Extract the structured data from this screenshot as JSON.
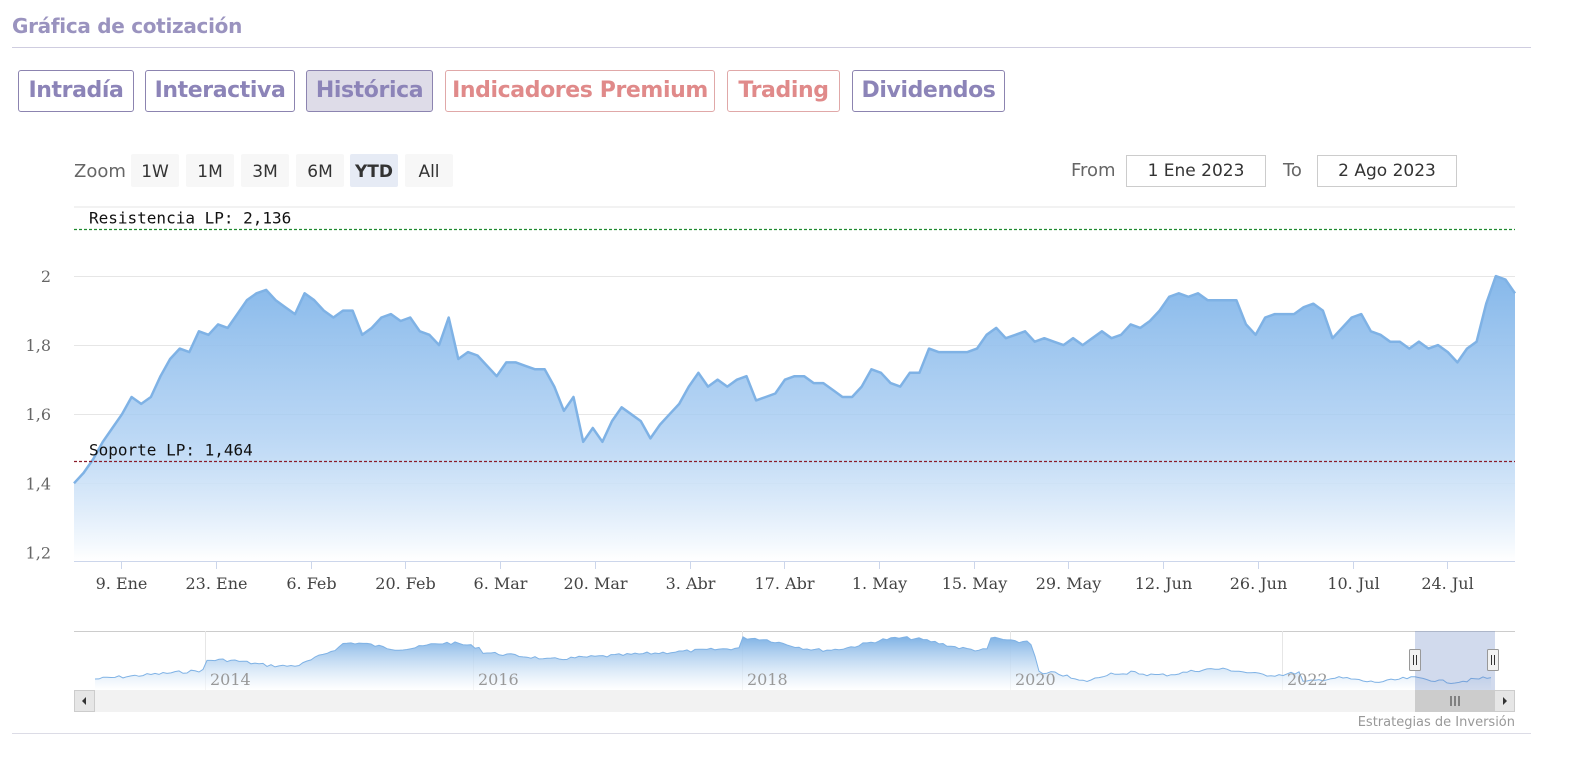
{
  "header": {
    "title": "Gráfica de cotización"
  },
  "tabs": [
    {
      "label": "Intradía",
      "style": "normal"
    },
    {
      "label": "Interactiva",
      "style": "normal"
    },
    {
      "label": "Histórica",
      "style": "active"
    },
    {
      "label": "Indicadores Premium",
      "style": "premium"
    },
    {
      "label": "Trading",
      "style": "premium"
    },
    {
      "label": "Dividendos",
      "style": "normal"
    }
  ],
  "range_selector": {
    "zoom_label": "Zoom",
    "buttons": [
      "1W",
      "1M",
      "3M",
      "6M",
      "YTD",
      "All"
    ],
    "selected": "YTD",
    "from_label": "From",
    "from_value": "1 Ene 2023",
    "to_label": "To",
    "to_value": "2 Ago 2023"
  },
  "chart_data": {
    "type": "area",
    "title": "",
    "xlabel": "",
    "ylabel": "",
    "ylim": [
      1.175,
      2.2
    ],
    "y_ticks": [
      1.2,
      1.4,
      1.6,
      1.8,
      2.0
    ],
    "y_tick_labels": [
      "1,2",
      "1,4",
      "1,6",
      "1,8",
      "2"
    ],
    "x_tick_labels": [
      "9. Ene",
      "23. Ene",
      "6. Feb",
      "20. Feb",
      "6. Mar",
      "20. Mar",
      "3. Abr",
      "17. Abr",
      "1. May",
      "15. May",
      "29. May",
      "12. Jun",
      "26. Jun",
      "10. Jul",
      "24. Jul"
    ],
    "x_tick_days": [
      8,
      22,
      36,
      50,
      64,
      78,
      92,
      106,
      120,
      134,
      148,
      162,
      176,
      190,
      204
    ],
    "x_range_days": [
      1,
      214
    ],
    "x_day_origin": "1 Ene 2023",
    "series": [
      {
        "values": [
          [
            1,
            1.4
          ],
          [
            2,
            1.43
          ],
          [
            3,
            1.47
          ],
          [
            4,
            1.52
          ],
          [
            5,
            1.56
          ],
          [
            6,
            1.6
          ],
          [
            7,
            1.65
          ],
          [
            8,
            1.63
          ],
          [
            9,
            1.65
          ],
          [
            10,
            1.71
          ],
          [
            11,
            1.76
          ],
          [
            12,
            1.79
          ],
          [
            13,
            1.78
          ],
          [
            14,
            1.84
          ],
          [
            15,
            1.83
          ],
          [
            16,
            1.86
          ],
          [
            17,
            1.85
          ],
          [
            18,
            1.89
          ],
          [
            19,
            1.93
          ],
          [
            20,
            1.95
          ],
          [
            21,
            1.96
          ],
          [
            22,
            1.93
          ],
          [
            23,
            1.91
          ],
          [
            24,
            1.89
          ],
          [
            25,
            1.95
          ],
          [
            26,
            1.93
          ],
          [
            27,
            1.9
          ],
          [
            28,
            1.88
          ],
          [
            29,
            1.9
          ],
          [
            30,
            1.9
          ],
          [
            31,
            1.83
          ],
          [
            32,
            1.85
          ],
          [
            33,
            1.88
          ],
          [
            34,
            1.89
          ],
          [
            35,
            1.87
          ],
          [
            36,
            1.88
          ],
          [
            37,
            1.84
          ],
          [
            38,
            1.83
          ],
          [
            39,
            1.8
          ],
          [
            40,
            1.88
          ],
          [
            41,
            1.76
          ],
          [
            42,
            1.78
          ],
          [
            43,
            1.77
          ],
          [
            44,
            1.74
          ],
          [
            45,
            1.71
          ],
          [
            46,
            1.75
          ],
          [
            47,
            1.75
          ],
          [
            48,
            1.74
          ],
          [
            49,
            1.73
          ],
          [
            50,
            1.73
          ],
          [
            51,
            1.68
          ],
          [
            52,
            1.61
          ],
          [
            53,
            1.65
          ],
          [
            54,
            1.52
          ],
          [
            55,
            1.56
          ],
          [
            56,
            1.52
          ],
          [
            57,
            1.58
          ],
          [
            58,
            1.62
          ],
          [
            59,
            1.6
          ],
          [
            60,
            1.58
          ],
          [
            61,
            1.53
          ],
          [
            62,
            1.57
          ],
          [
            63,
            1.6
          ],
          [
            64,
            1.63
          ],
          [
            65,
            1.68
          ],
          [
            66,
            1.72
          ],
          [
            67,
            1.68
          ],
          [
            68,
            1.7
          ],
          [
            69,
            1.68
          ],
          [
            70,
            1.7
          ],
          [
            71,
            1.71
          ],
          [
            72,
            1.64
          ],
          [
            73,
            1.65
          ],
          [
            74,
            1.66
          ],
          [
            75,
            1.7
          ],
          [
            76,
            1.71
          ],
          [
            77,
            1.71
          ],
          [
            78,
            1.69
          ],
          [
            79,
            1.69
          ],
          [
            80,
            1.67
          ],
          [
            81,
            1.65
          ],
          [
            82,
            1.65
          ],
          [
            83,
            1.68
          ],
          [
            84,
            1.73
          ],
          [
            85,
            1.72
          ],
          [
            86,
            1.69
          ],
          [
            87,
            1.68
          ],
          [
            88,
            1.72
          ],
          [
            89,
            1.72
          ],
          [
            90,
            1.79
          ],
          [
            91,
            1.78
          ],
          [
            92,
            1.78
          ],
          [
            93,
            1.78
          ],
          [
            94,
            1.78
          ],
          [
            95,
            1.79
          ],
          [
            96,
            1.83
          ],
          [
            97,
            1.85
          ],
          [
            98,
            1.82
          ],
          [
            99,
            1.83
          ],
          [
            100,
            1.84
          ],
          [
            101,
            1.81
          ],
          [
            102,
            1.82
          ],
          [
            103,
            1.81
          ],
          [
            104,
            1.8
          ],
          [
            105,
            1.82
          ],
          [
            106,
            1.8
          ],
          [
            107,
            1.82
          ],
          [
            108,
            1.84
          ],
          [
            109,
            1.82
          ],
          [
            110,
            1.83
          ],
          [
            111,
            1.86
          ],
          [
            112,
            1.85
          ],
          [
            113,
            1.87
          ],
          [
            114,
            1.9
          ],
          [
            115,
            1.94
          ],
          [
            116,
            1.95
          ],
          [
            117,
            1.94
          ],
          [
            118,
            1.95
          ],
          [
            119,
            1.93
          ],
          [
            120,
            1.93
          ],
          [
            121,
            1.93
          ],
          [
            122,
            1.93
          ],
          [
            123,
            1.86
          ],
          [
            124,
            1.83
          ],
          [
            125,
            1.88
          ],
          [
            126,
            1.89
          ],
          [
            127,
            1.89
          ],
          [
            128,
            1.89
          ],
          [
            129,
            1.91
          ],
          [
            130,
            1.92
          ],
          [
            131,
            1.9
          ],
          [
            132,
            1.82
          ],
          [
            133,
            1.85
          ],
          [
            134,
            1.88
          ],
          [
            135,
            1.89
          ],
          [
            136,
            1.84
          ],
          [
            137,
            1.83
          ],
          [
            138,
            1.81
          ],
          [
            139,
            1.81
          ],
          [
            140,
            1.79
          ],
          [
            141,
            1.81
          ],
          [
            142,
            1.79
          ],
          [
            143,
            1.8
          ],
          [
            144,
            1.78
          ],
          [
            145,
            1.75
          ],
          [
            146,
            1.79
          ],
          [
            147,
            1.81
          ],
          [
            148,
            1.92
          ],
          [
            149,
            2.0
          ],
          [
            150,
            1.99
          ],
          [
            151,
            1.95
          ]
        ]
      }
    ],
    "reference_lines": [
      {
        "label": "Resistencia LP: 2,136",
        "value": 2.136,
        "color": "#1f8a2f",
        "style": "dashed"
      },
      {
        "label": "Soporte LP: 1,464",
        "value": 1.464,
        "color": "#8b1c2a",
        "style": "dashed"
      }
    ],
    "colors": {
      "line": "#7fb2e5",
      "fill_top": "#86b8ea",
      "fill_bottom": "#ffffff",
      "grid": "#e6e6e6"
    }
  },
  "navigator": {
    "year_labels": [
      "2014",
      "2016",
      "2018",
      "2020",
      "2022"
    ],
    "selection_handle_icons": [
      "handle-grip-icon",
      "handle-grip-icon"
    ],
    "scrollbar_icons": [
      "arrow-left-icon",
      "scrollbar-grip-icon",
      "arrow-right-icon"
    ]
  },
  "credits": {
    "text": "Estrategias de Inversión"
  }
}
